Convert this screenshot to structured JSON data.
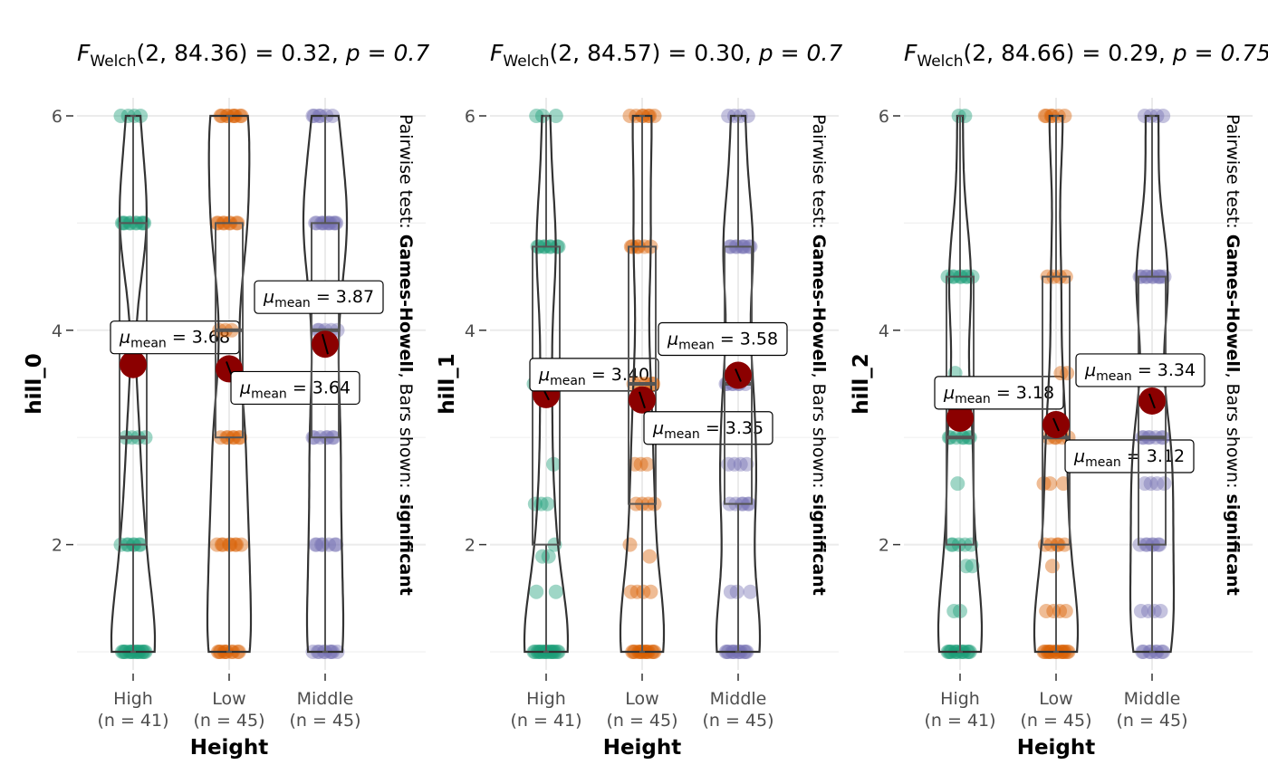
{
  "chart_data": [
    {
      "type": "violin",
      "title": {
        "stat": "F",
        "stat_sub": "Welch",
        "df1": "2",
        "df2": "84.36",
        "value": "0.32",
        "p_text": "p = 0.7"
      },
      "xlabel": "Height",
      "ylabel": "hill_0",
      "subtitle_side": {
        "prefix": "Pairwise test: ",
        "test": "Games-Howell",
        "mid": ", Bars shown: ",
        "shown": "significant"
      },
      "ylim": [
        0.8,
        6.2
      ],
      "yticks": [
        2,
        4,
        6
      ],
      "groups": [
        {
          "name": "High",
          "n_label": "(n = 41)",
          "color": "#1b9e77",
          "mean": 3.68,
          "mean_label": "3.68",
          "box": {
            "q1": 2.0,
            "median": 3.0,
            "q3": 5.0,
            "min": 1.0,
            "max": 6.0
          },
          "points": [
            6,
            6,
            6,
            6,
            5,
            5,
            5,
            5,
            5,
            5,
            5,
            5,
            5,
            5,
            3,
            3,
            3,
            3,
            2,
            2,
            2,
            2,
            2,
            2,
            2,
            1,
            1,
            1,
            1,
            1,
            1,
            1,
            1,
            1,
            1,
            1,
            1,
            1,
            1,
            1,
            1
          ]
        },
        {
          "name": "Low",
          "n_label": "(n = 45)",
          "color": "#d95f02",
          "mean": 3.64,
          "mean_label": "3.64",
          "box": {
            "q1": 3.0,
            "median": 4.0,
            "q3": 5.0,
            "min": 1.0,
            "max": 6.0
          },
          "points": [
            6,
            6,
            6,
            6,
            6,
            6,
            6,
            6,
            6,
            5,
            5,
            5,
            5,
            5,
            5,
            5,
            5,
            4,
            4,
            4,
            3,
            3,
            3,
            3,
            3,
            3,
            3,
            2,
            2,
            2,
            2,
            2,
            2,
            2,
            2,
            1,
            1,
            1,
            1,
            1,
            1,
            1,
            1,
            1,
            1
          ]
        },
        {
          "name": "Middle",
          "n_label": "(n = 45)",
          "color": "#7570b3",
          "mean": 3.87,
          "mean_label": "3.87",
          "box": {
            "q1": 3.0,
            "median": 4.0,
            "q3": 5.0,
            "min": 1.0,
            "max": 6.0
          },
          "points": [
            6,
            6,
            6,
            6,
            6,
            6,
            5,
            5,
            5,
            5,
            5,
            5,
            5,
            5,
            5,
            5,
            5,
            4,
            4,
            4,
            4,
            4,
            3,
            3,
            3,
            3,
            3,
            3,
            3,
            2,
            2,
            2,
            2,
            2,
            2,
            2,
            1,
            1,
            1,
            1,
            1,
            1,
            1,
            1,
            1
          ]
        }
      ]
    },
    {
      "type": "violin",
      "title": {
        "stat": "F",
        "stat_sub": "Welch",
        "df1": "2",
        "df2": "84.57",
        "value": "0.30",
        "p_text": "p = 0.7"
      },
      "xlabel": "Height",
      "ylabel": "hill_1",
      "subtitle_side": {
        "prefix": "Pairwise test: ",
        "test": "Games-Howell",
        "mid": ", Bars shown: ",
        "shown": "significant"
      },
      "ylim": [
        0.8,
        6.2
      ],
      "yticks": [
        2,
        4,
        6
      ],
      "groups": [
        {
          "name": "High",
          "n_label": "(n = 41)",
          "color": "#1b9e77",
          "mean": 3.4,
          "mean_label": "3.40",
          "box": {
            "q1": 2.0,
            "median": 3.5,
            "q3": 4.78,
            "min": 1.0,
            "max": 6.0
          },
          "points": [
            6,
            6,
            6,
            4.78,
            4.78,
            4.78,
            4.78,
            4.78,
            4.78,
            4.78,
            4.78,
            3.5,
            3.5,
            3.5,
            3.5,
            2.75,
            2.38,
            2.38,
            2.38,
            2.0,
            1.89,
            1.89,
            1.56,
            1.56,
            1,
            1,
            1,
            1,
            1,
            1,
            1,
            1,
            1,
            1,
            1,
            1,
            1,
            1,
            1,
            1,
            1
          ]
        },
        {
          "name": "Low",
          "n_label": "(n = 45)",
          "color": "#d95f02",
          "mean": 3.35,
          "mean_label": "3.35",
          "box": {
            "q1": 2.38,
            "median": 3.5,
            "q3": 4.78,
            "min": 1.0,
            "max": 6.0
          },
          "points": [
            6,
            6,
            6,
            6,
            6,
            6,
            6,
            4.78,
            4.78,
            4.78,
            4.78,
            4.78,
            4.78,
            3.5,
            3.5,
            3.5,
            3.5,
            3.5,
            2.75,
            2.75,
            2.75,
            2.38,
            2.38,
            2.38,
            2.38,
            2.0,
            1.89,
            1.56,
            1.56,
            1.56,
            1.56,
            1,
            1,
            1,
            1,
            1,
            1,
            1,
            1,
            1,
            1,
            1,
            1,
            1,
            1
          ]
        },
        {
          "name": "Middle",
          "n_label": "(n = 45)",
          "color": "#7570b3",
          "mean": 3.58,
          "mean_label": "3.58",
          "box": {
            "q1": 2.38,
            "median": 3.5,
            "q3": 4.78,
            "min": 1.0,
            "max": 6.0
          },
          "points": [
            6,
            6,
            6,
            6,
            4.78,
            4.78,
            4.78,
            4.78,
            4.78,
            4.78,
            4.78,
            4.78,
            4.78,
            3.5,
            3.5,
            3.5,
            3.5,
            3.5,
            3.5,
            3.5,
            2.75,
            2.75,
            2.75,
            2.75,
            2.38,
            2.38,
            2.38,
            2.38,
            2.38,
            2.38,
            1.56,
            1.56,
            1.56,
            1,
            1,
            1,
            1,
            1,
            1,
            1,
            1,
            1,
            1,
            1,
            1
          ]
        }
      ]
    },
    {
      "type": "violin",
      "title": {
        "stat": "F",
        "stat_sub": "Welch",
        "df1": "2",
        "df2": "84.66",
        "value": "0.29",
        "p_text": "p = 0.75"
      },
      "xlabel": "Height",
      "ylabel": "hill_2",
      "subtitle_side": {
        "prefix": "Pairwise test: ",
        "test": "Games-Howell",
        "mid": ", Bars shown: ",
        "shown": "significant"
      },
      "ylim": [
        0.8,
        6.2
      ],
      "yticks": [
        2,
        4,
        6
      ],
      "groups": [
        {
          "name": "High",
          "n_label": "(n = 41)",
          "color": "#1b9e77",
          "mean": 3.18,
          "mean_label": "3.18",
          "box": {
            "q1": 2.0,
            "median": 3.0,
            "q3": 4.5,
            "min": 1.0,
            "max": 6.0
          },
          "points": [
            6,
            6,
            4.5,
            4.5,
            4.5,
            4.5,
            4.5,
            4.5,
            4.5,
            4.5,
            3.6,
            3.0,
            3.0,
            3.0,
            3.0,
            3.0,
            3.0,
            3.0,
            2.57,
            2.0,
            2.0,
            2.0,
            2.0,
            2.0,
            1.8,
            1.8,
            1.38,
            1.38,
            1,
            1,
            1,
            1,
            1,
            1,
            1,
            1,
            1,
            1,
            1,
            1,
            1
          ]
        },
        {
          "name": "Low",
          "n_label": "(n = 45)",
          "color": "#d95f02",
          "mean": 3.12,
          "mean_label": "3.12",
          "box": {
            "q1": 2.0,
            "median": 3.0,
            "q3": 4.5,
            "min": 1.0,
            "max": 6.0
          },
          "points": [
            6,
            6,
            6,
            6,
            6,
            6,
            4.5,
            4.5,
            4.5,
            4.5,
            3.6,
            3.6,
            3.0,
            3.0,
            3.0,
            3.0,
            3.0,
            2.57,
            2.57,
            2.57,
            2.0,
            2.0,
            2.0,
            2.0,
            2.0,
            1.8,
            1.38,
            1.38,
            1.38,
            1.38,
            1,
            1,
            1,
            1,
            1,
            1,
            1,
            1,
            1,
            1,
            1,
            1,
            1,
            1,
            1
          ]
        },
        {
          "name": "Middle",
          "n_label": "(n = 45)",
          "color": "#7570b3",
          "mean": 3.34,
          "mean_label": "3.34",
          "box": {
            "q1": 2.0,
            "median": 3.0,
            "q3": 4.5,
            "min": 1.0,
            "max": 6.0
          },
          "points": [
            6,
            6,
            6,
            6,
            4.5,
            4.5,
            4.5,
            4.5,
            4.5,
            4.5,
            4.5,
            4.5,
            4.5,
            4.5,
            3.6,
            3.0,
            3.0,
            3.0,
            3.0,
            3.0,
            3.0,
            3.0,
            2.57,
            2.57,
            2.57,
            2.57,
            2.0,
            2.0,
            2.0,
            2.0,
            2.0,
            2.0,
            2.0,
            1.38,
            1.38,
            1.38,
            1.38,
            1,
            1,
            1,
            1,
            1,
            1,
            1,
            1
          ]
        }
      ]
    }
  ]
}
